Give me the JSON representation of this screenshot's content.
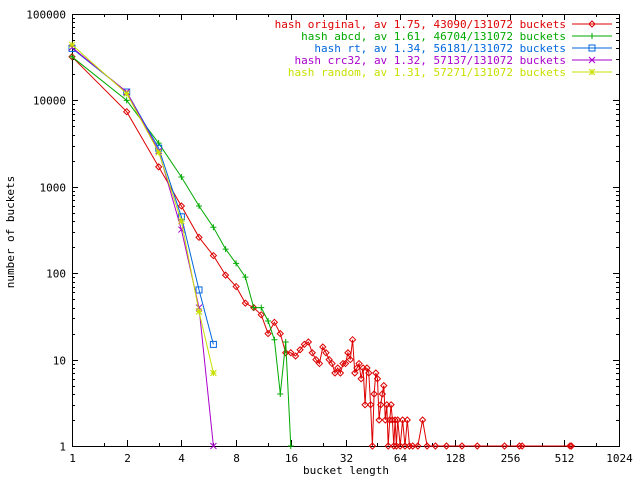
{
  "chart_data": {
    "type": "line",
    "title": "",
    "xlabel": "bucket length",
    "ylabel": "number of buckets",
    "x_scale": "log2",
    "y_scale": "log10",
    "xlim": [
      1,
      1024
    ],
    "ylim": [
      1,
      100000
    ],
    "x_ticks": [
      1,
      2,
      4,
      8,
      16,
      32,
      64,
      128,
      256,
      512,
      1024
    ],
    "x_tick_labels": [
      "1",
      "2",
      "4",
      "8",
      "16",
      "32",
      "64",
      "128",
      "256",
      "512",
      "1024"
    ],
    "y_ticks": [
      1,
      10,
      100,
      1000,
      10000,
      100000
    ],
    "y_tick_labels": [
      "1",
      "10",
      "100",
      "1000",
      "10000",
      "100000"
    ],
    "grid": false,
    "legend_position": "top-right",
    "series": [
      {
        "name": "hash original, av 1.75, 43090/131072 buckets",
        "color": "#dd0000",
        "marker": "diamond",
        "points": [
          [
            1,
            32000
          ],
          [
            2,
            7400
          ],
          [
            3,
            1700
          ],
          [
            4,
            600
          ],
          [
            5,
            260
          ],
          [
            6,
            160
          ],
          [
            7,
            95
          ],
          [
            8,
            70
          ],
          [
            9,
            45
          ],
          [
            10,
            40
          ],
          [
            11,
            33
          ],
          [
            12,
            20
          ],
          [
            13,
            27
          ],
          [
            14,
            20
          ],
          [
            15,
            12
          ],
          [
            16,
            12
          ],
          [
            17,
            11
          ],
          [
            18,
            13
          ],
          [
            19,
            15
          ],
          [
            20,
            16
          ],
          [
            21,
            12
          ],
          [
            22,
            10
          ],
          [
            23,
            9
          ],
          [
            24,
            14
          ],
          [
            25,
            12
          ],
          [
            26,
            10
          ],
          [
            27,
            9
          ],
          [
            28,
            7
          ],
          [
            29,
            8
          ],
          [
            30,
            7
          ],
          [
            31,
            9
          ],
          [
            32,
            9
          ],
          [
            33,
            12
          ],
          [
            34,
            10
          ],
          [
            35,
            17
          ],
          [
            36,
            7
          ],
          [
            37,
            8
          ],
          [
            38,
            9
          ],
          [
            39,
            6
          ],
          [
            40,
            8
          ],
          [
            41,
            3
          ],
          [
            42,
            8
          ],
          [
            43,
            7
          ],
          [
            44,
            3
          ],
          [
            45,
            1
          ],
          [
            46,
            4
          ],
          [
            47,
            7
          ],
          [
            48,
            6
          ],
          [
            49,
            2
          ],
          [
            50,
            3
          ],
          [
            51,
            4
          ],
          [
            52,
            5
          ],
          [
            53,
            2
          ],
          [
            54,
            3
          ],
          [
            55,
            1
          ],
          [
            56,
            2
          ],
          [
            57,
            3
          ],
          [
            58,
            2
          ],
          [
            59,
            1
          ],
          [
            60,
            2
          ],
          [
            61,
            1
          ],
          [
            62,
            2
          ],
          [
            64,
            1
          ],
          [
            66,
            2
          ],
          [
            68,
            1
          ],
          [
            70,
            2
          ],
          [
            72,
            1
          ],
          [
            75,
            1
          ],
          [
            80,
            1
          ],
          [
            85,
            2
          ],
          [
            90,
            1
          ],
          [
            100,
            1
          ],
          [
            115,
            1
          ],
          [
            140,
            1
          ],
          [
            170,
            1
          ],
          [
            240,
            1
          ],
          [
            290,
            1
          ],
          [
            300,
            1
          ],
          [
            550,
            1
          ],
          [
            560,
            1
          ]
        ]
      },
      {
        "name": "hash abcd, av 1.61, 46704/131072 buckets",
        "color": "#00aa00",
        "marker": "plus",
        "points": [
          [
            1,
            32000
          ],
          [
            2,
            10000
          ],
          [
            3,
            3200
          ],
          [
            4,
            1300
          ],
          [
            5,
            600
          ],
          [
            6,
            340
          ],
          [
            7,
            190
          ],
          [
            8,
            130
          ],
          [
            9,
            90
          ],
          [
            10,
            40
          ],
          [
            11,
            40
          ],
          [
            12,
            28
          ],
          [
            13,
            17
          ],
          [
            14,
            4
          ],
          [
            15,
            16
          ],
          [
            16,
            1
          ]
        ]
      },
      {
        "name": "hash rt, av 1.34, 56181/131072 buckets",
        "color": "#0066dd",
        "marker": "square",
        "points": [
          [
            1,
            40000
          ],
          [
            2,
            12500
          ],
          [
            3,
            2800
          ],
          [
            4,
            450
          ],
          [
            5,
            64
          ],
          [
            6,
            15
          ]
        ]
      },
      {
        "name": "hash crc32, av 1.32, 57137/131072 buckets",
        "color": "#aa00cc",
        "marker": "x",
        "points": [
          [
            1,
            41000
          ],
          [
            2,
            12500
          ],
          [
            3,
            2600
          ],
          [
            4,
            320
          ],
          [
            5,
            40
          ],
          [
            6,
            1
          ]
        ]
      },
      {
        "name": "hash random, av 1.31, 57271/131072 buckets",
        "color": "#c8e000",
        "marker": "star",
        "points": [
          [
            1,
            44000
          ],
          [
            2,
            12000
          ],
          [
            3,
            2500
          ],
          [
            4,
            400
          ],
          [
            5,
            36
          ],
          [
            6,
            7
          ]
        ]
      }
    ]
  }
}
